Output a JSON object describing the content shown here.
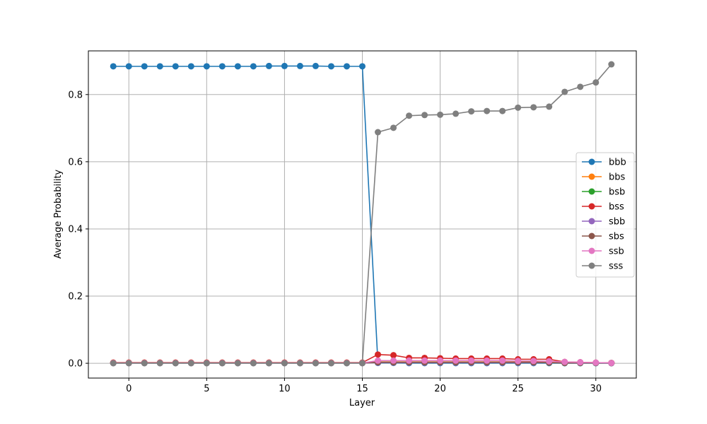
{
  "chart_data": {
    "type": "line",
    "title": "",
    "xlabel": "Layer",
    "ylabel": "Average Probability",
    "xlim": [
      -2.6,
      32.6
    ],
    "ylim": [
      -0.044,
      0.93
    ],
    "xticks": [
      0,
      5,
      10,
      15,
      20,
      25,
      30
    ],
    "yticks": [
      0.0,
      0.2,
      0.4,
      0.6,
      0.8
    ],
    "ytick_labels": [
      "0.0",
      "0.2",
      "0.4",
      "0.6",
      "0.8"
    ],
    "grid": true,
    "legend_position": "center-right",
    "x": [
      -1,
      0,
      1,
      2,
      3,
      4,
      5,
      6,
      7,
      8,
      9,
      10,
      11,
      12,
      13,
      14,
      15,
      16,
      17,
      18,
      19,
      20,
      21,
      22,
      23,
      24,
      25,
      26,
      27,
      28,
      29,
      30,
      31
    ],
    "series": [
      {
        "name": "bbb",
        "color": "#1f77b4",
        "values": [
          0.884,
          0.884,
          0.884,
          0.884,
          0.884,
          0.884,
          0.884,
          0.884,
          0.884,
          0.884,
          0.885,
          0.885,
          0.885,
          0.885,
          0.884,
          0.884,
          0.884,
          0.001,
          0.001,
          0.0005,
          0.0005,
          0.0005,
          0.0005,
          0.0005,
          0.0005,
          0.0005,
          0.0005,
          0.0005,
          0.0005,
          0.0003,
          0.0003,
          0.0002,
          0.0002
        ]
      },
      {
        "name": "bbs",
        "color": "#ff7f0e",
        "values": [
          0.002,
          0.002,
          0.002,
          0.002,
          0.002,
          0.002,
          0.002,
          0.002,
          0.002,
          0.002,
          0.002,
          0.002,
          0.002,
          0.002,
          0.002,
          0.002,
          0.002,
          0.004,
          0.004,
          0.004,
          0.004,
          0.004,
          0.004,
          0.004,
          0.004,
          0.004,
          0.004,
          0.004,
          0.003,
          0.002,
          0.002,
          0.001,
          0.001
        ]
      },
      {
        "name": "bsb",
        "color": "#2ca02c",
        "values": [
          0.001,
          0.001,
          0.001,
          0.001,
          0.001,
          0.001,
          0.001,
          0.001,
          0.001,
          0.001,
          0.001,
          0.001,
          0.001,
          0.001,
          0.001,
          0.001,
          0.001,
          0.003,
          0.003,
          0.003,
          0.003,
          0.003,
          0.003,
          0.003,
          0.003,
          0.003,
          0.003,
          0.003,
          0.002,
          0.001,
          0.001,
          0.001,
          0.001
        ]
      },
      {
        "name": "bss",
        "color": "#d62728",
        "values": [
          0.002,
          0.002,
          0.002,
          0.002,
          0.002,
          0.002,
          0.002,
          0.002,
          0.002,
          0.002,
          0.002,
          0.002,
          0.002,
          0.002,
          0.002,
          0.002,
          0.002,
          0.026,
          0.024,
          0.016,
          0.016,
          0.015,
          0.014,
          0.014,
          0.014,
          0.014,
          0.012,
          0.012,
          0.012,
          0.004,
          0.003,
          0.002,
          0.001
        ]
      },
      {
        "name": "sbb",
        "color": "#9467bd",
        "values": [
          0.0005,
          0.0005,
          0.0005,
          0.0005,
          0.0005,
          0.0005,
          0.0005,
          0.0005,
          0.0005,
          0.0005,
          0.0005,
          0.0005,
          0.0005,
          0.0005,
          0.0005,
          0.0005,
          0.0005,
          0.002,
          0.002,
          0.002,
          0.002,
          0.002,
          0.002,
          0.002,
          0.002,
          0.002,
          0.002,
          0.002,
          0.002,
          0.001,
          0.001,
          0.001,
          0.0005
        ]
      },
      {
        "name": "sbs",
        "color": "#8c564b",
        "values": [
          0.001,
          0.001,
          0.001,
          0.001,
          0.001,
          0.001,
          0.001,
          0.001,
          0.001,
          0.001,
          0.001,
          0.001,
          0.001,
          0.001,
          0.001,
          0.001,
          0.001,
          0.003,
          0.003,
          0.003,
          0.003,
          0.003,
          0.003,
          0.003,
          0.003,
          0.003,
          0.003,
          0.003,
          0.002,
          0.001,
          0.001,
          0.001,
          0.0005
        ]
      },
      {
        "name": "ssb",
        "color": "#e377c2",
        "values": [
          0.001,
          0.001,
          0.001,
          0.001,
          0.001,
          0.001,
          0.001,
          0.001,
          0.001,
          0.001,
          0.001,
          0.001,
          0.001,
          0.001,
          0.001,
          0.001,
          0.001,
          0.008,
          0.008,
          0.008,
          0.008,
          0.008,
          0.008,
          0.008,
          0.008,
          0.008,
          0.007,
          0.007,
          0.006,
          0.004,
          0.003,
          0.002,
          0.001
        ]
      },
      {
        "name": "sss",
        "color": "#7f7f7f",
        "values": [
          0.0003,
          0.0003,
          0.0003,
          0.0003,
          0.0003,
          0.0003,
          0.0003,
          0.0003,
          0.0003,
          0.0003,
          0.0003,
          0.0003,
          0.0003,
          0.0003,
          0.0003,
          0.0003,
          0.0003,
          0.688,
          0.701,
          0.737,
          0.739,
          0.74,
          0.743,
          0.75,
          0.751,
          0.751,
          0.761,
          0.762,
          0.764,
          0.808,
          0.823,
          0.836,
          0.89
        ]
      }
    ]
  }
}
